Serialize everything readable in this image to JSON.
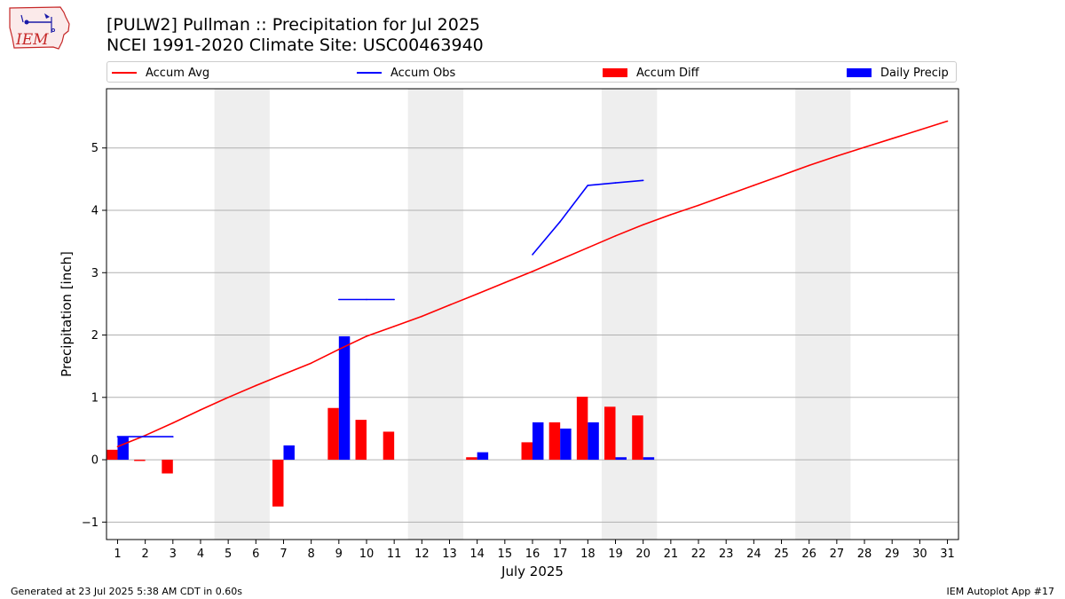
{
  "logo": {
    "text": "IEM"
  },
  "header": {
    "title_line1": "[PULW2] Pullman :: Precipitation for Jul 2025",
    "title_line2": "NCEI 1991-2020 Climate Site: USC00463940"
  },
  "legend": [
    {
      "label": "Accum Avg",
      "kind": "line",
      "color": "#ff0000"
    },
    {
      "label": "Accum Obs",
      "kind": "line",
      "color": "#0000ff"
    },
    {
      "label": "Accum Diff",
      "kind": "box",
      "color": "#ff0000"
    },
    {
      "label": "Daily Precip",
      "kind": "box",
      "color": "#0000ff"
    }
  ],
  "footer": {
    "left": "Generated at 23 Jul 2025 5:38 AM CDT in 0.60s",
    "right": "IEM Autoplot App #17"
  },
  "chart_data": {
    "type": "bar",
    "xlabel": "July 2025",
    "ylabel": "Precipitation [inch]",
    "xlim": [
      0.6,
      31.4
    ],
    "ylim": [
      -1.28,
      5.95
    ],
    "x_ticks": [
      1,
      2,
      3,
      4,
      5,
      6,
      7,
      8,
      9,
      10,
      11,
      12,
      13,
      14,
      15,
      16,
      17,
      18,
      19,
      20,
      21,
      22,
      23,
      24,
      25,
      26,
      27,
      28,
      29,
      30,
      31
    ],
    "y_ticks": [
      -1,
      0,
      1,
      2,
      3,
      4,
      5
    ],
    "grid": "y",
    "weekend_shading": [
      [
        4.5,
        6.5
      ],
      [
        11.5,
        13.5
      ],
      [
        18.5,
        20.5
      ],
      [
        25.5,
        27.5
      ]
    ],
    "shading_color": "#eeeeee",
    "series": [
      {
        "name": "Accum Avg",
        "kind": "line",
        "color": "#ff0000",
        "x": [
          1,
          2,
          3,
          4,
          5,
          6,
          7,
          8,
          9,
          10,
          11,
          12,
          13,
          14,
          15,
          16,
          17,
          18,
          19,
          20,
          21,
          22,
          23,
          24,
          25,
          26,
          27,
          28,
          29,
          30,
          31
        ],
        "y": [
          0.21,
          0.39,
          0.59,
          0.8,
          1.0,
          1.19,
          1.37,
          1.55,
          1.77,
          1.98,
          2.14,
          2.3,
          2.48,
          2.66,
          2.84,
          3.02,
          3.21,
          3.4,
          3.59,
          3.77,
          3.93,
          4.08,
          4.24,
          4.4,
          4.56,
          4.72,
          4.87,
          5.01,
          5.15,
          5.29,
          5.43
        ]
      },
      {
        "name": "Accum Obs",
        "kind": "line",
        "color": "#0000ff",
        "x": [
          1,
          2,
          3,
          null,
          9,
          10,
          11,
          null,
          16,
          17,
          18,
          19,
          20
        ],
        "y": [
          0.37,
          0.37,
          0.37,
          null,
          2.57,
          2.57,
          2.57,
          null,
          3.29,
          3.82,
          4.4,
          4.44,
          4.48
        ]
      },
      {
        "name": "Accum Diff",
        "kind": "bar",
        "color": "#ff0000",
        "x": [
          1,
          2,
          3,
          7,
          9,
          10,
          11,
          14,
          16,
          17,
          18,
          19,
          20
        ],
        "y": [
          0.16,
          -0.02,
          -0.22,
          -0.75,
          0.83,
          0.64,
          0.45,
          0.04,
          0.28,
          0.6,
          1.01,
          0.85,
          0.71
        ]
      },
      {
        "name": "Daily Precip",
        "kind": "bar",
        "color": "#0000ff",
        "x": [
          1,
          7,
          9,
          14,
          16,
          17,
          18,
          19,
          20
        ],
        "y": [
          0.37,
          0.23,
          1.98,
          0.12,
          0.6,
          0.5,
          0.6,
          0.04,
          0.04
        ]
      }
    ]
  }
}
